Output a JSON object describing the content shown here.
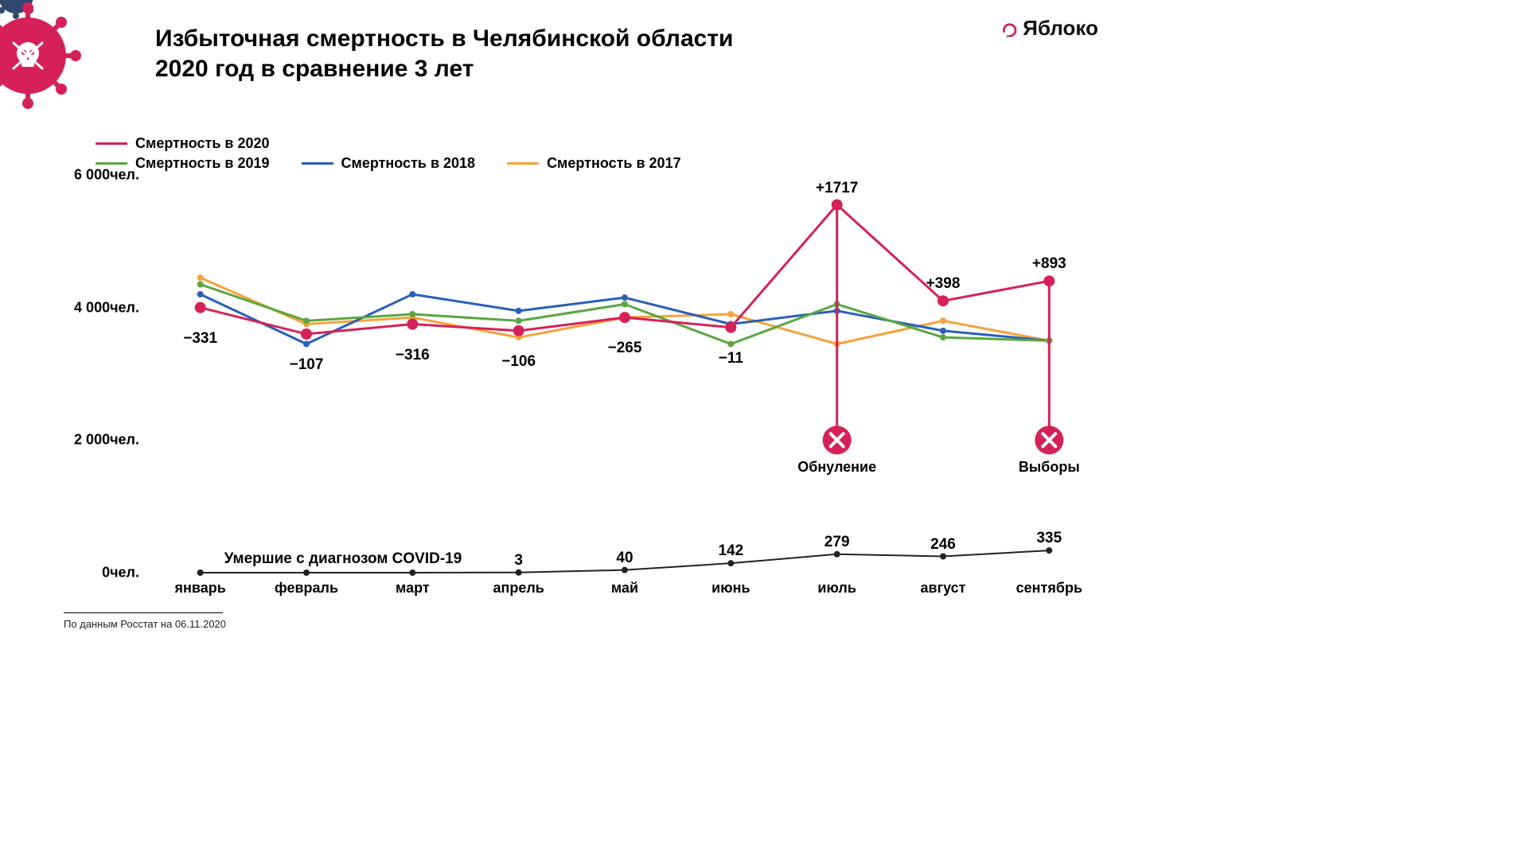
{
  "header": {
    "title_line1": "Избыточная смертность в Челябинской области",
    "title_line2": "2020 год в сравнение 3 лет"
  },
  "brand": {
    "name": "Яблоко",
    "accent_color": "#d62058",
    "text_color": "#111111",
    "arrow_color": "#5aa641"
  },
  "legend": {
    "s2020": {
      "label": "Смертность в 2020",
      "color": "#d62058"
    },
    "s2019": {
      "label": "Смертность в 2019",
      "color": "#5aa641"
    },
    "s2018": {
      "label": "Смертность в 2018",
      "color": "#2a5fb8"
    },
    "s2017": {
      "label": "Смертность в 2017",
      "color": "#f5a23c"
    }
  },
  "chart": {
    "type": "line",
    "background_color": "#ffffff",
    "months": [
      "январь",
      "февраль",
      "март",
      "апрель",
      "май",
      "июнь",
      "июль",
      "август",
      "сентябрь"
    ],
    "y_ticks": [
      0,
      2000,
      4000,
      6000
    ],
    "y_tick_labels": [
      "0чел.",
      "2 000чел.",
      "4 000чел.",
      "6 000чел."
    ],
    "ylim": [
      0,
      6000
    ],
    "series": {
      "2017": {
        "color": "#f5a23c",
        "values": [
          4450,
          3750,
          3850,
          3550,
          3850,
          3900,
          3450,
          3800,
          3500
        ],
        "width": 3
      },
      "2018": {
        "color": "#2a5fb8",
        "values": [
          4200,
          3450,
          4200,
          3950,
          4150,
          3750,
          3950,
          3650,
          3500
        ],
        "width": 3
      },
      "2019": {
        "color": "#5aa641",
        "values": [
          4350,
          3800,
          3900,
          3800,
          4050,
          3450,
          4050,
          3550,
          3500
        ],
        "width": 3
      },
      "2020": {
        "color": "#d62058",
        "values": [
          4000,
          3600,
          3750,
          3650,
          3850,
          3700,
          5550,
          4100,
          4400
        ],
        "width": 3,
        "marker_radius": 7,
        "marker_fill": "#d62058"
      }
    },
    "delta_labels": [
      {
        "month_idx": 0,
        "text": "−331",
        "dy": 28
      },
      {
        "month_idx": 1,
        "text": "−107",
        "dy": 28
      },
      {
        "month_idx": 2,
        "text": "−316",
        "dy": 28
      },
      {
        "month_idx": 3,
        "text": "−106",
        "dy": 28
      },
      {
        "month_idx": 4,
        "text": "−265",
        "dy": 28
      },
      {
        "month_idx": 5,
        "text": "−11",
        "dy": 28
      },
      {
        "month_idx": 6,
        "text": "+1717",
        "dy": -32
      },
      {
        "month_idx": 7,
        "text": "+398",
        "dy": -32
      },
      {
        "month_idx": 8,
        "text": "+893",
        "dy": -32
      }
    ],
    "covid": {
      "title": "Умершие с диагнозом COVID-19",
      "color": "#222222",
      "values": [
        0,
        0,
        0,
        3,
        40,
        142,
        279,
        246,
        335
      ],
      "width": 2,
      "marker_radius": 4,
      "value_labels": [
        {
          "month_idx": 3,
          "text": "3"
        },
        {
          "month_idx": 4,
          "text": "40"
        },
        {
          "month_idx": 5,
          "text": "142"
        },
        {
          "month_idx": 6,
          "text": "279"
        },
        {
          "month_idx": 7,
          "text": "246"
        },
        {
          "month_idx": 8,
          "text": "335"
        }
      ]
    },
    "events": [
      {
        "month_idx": 6,
        "y_value": 2000,
        "label": "Обнуление",
        "color": "#d62058"
      },
      {
        "month_idx": 8,
        "y_value": 2000,
        "label": "Выборы",
        "color": "#d62058"
      }
    ],
    "title_fontsize": 30,
    "label_fontsize": 18
  },
  "footer": {
    "text": "По данным Росстат на 06.11.2020"
  },
  "decor": {
    "virus_main_color": "#d62058",
    "virus_secondary_color": "#2f486e",
    "skull_color": "#ffffff"
  }
}
